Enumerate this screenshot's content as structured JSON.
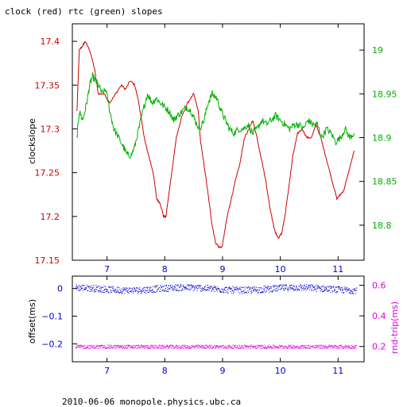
{
  "title": "clock (red) rtc (green) slopes",
  "footer": "2010-06-06 monopole.physics.ubc.ca",
  "chart_data": [
    {
      "type": "line",
      "title": "clock (red) rtc (green) slopes",
      "xlim": [
        6.4,
        11.45
      ],
      "x_ticks": [
        7,
        8,
        9,
        10,
        11
      ],
      "left_axis": {
        "label": "clockslope",
        "range": [
          17.15,
          17.42
        ],
        "ticks": [
          "17.15",
          "17.2",
          "17.25",
          "17.3",
          "17.35",
          "17.4"
        ],
        "color": "#d00000"
      },
      "right_axis": {
        "label": "",
        "range": [
          18.76,
          19.03
        ],
        "ticks": [
          "18.8",
          "18.85",
          "18.9",
          "18.95",
          "19"
        ],
        "color": "#00b000"
      },
      "series": [
        {
          "color": "#d00000",
          "axis": "left",
          "x": [
            6.48,
            6.52,
            6.58,
            6.62,
            6.7,
            6.78,
            6.85,
            6.95,
            7.05,
            7.15,
            7.25,
            7.32,
            7.4,
            7.48,
            7.55,
            7.62,
            7.66,
            7.72,
            7.8,
            7.86,
            7.92,
            7.98,
            8.02,
            8.06,
            8.12,
            8.2,
            8.3,
            8.4,
            8.5,
            8.58,
            8.62,
            8.7,
            8.76,
            8.82,
            8.88,
            8.94,
            8.99,
            9.03,
            9.08,
            9.15,
            9.22,
            9.3,
            9.38,
            9.46,
            9.52,
            9.58,
            9.66,
            9.75,
            9.82,
            9.9,
            9.96,
            10.02,
            10.08,
            10.15,
            10.22,
            10.3,
            10.38,
            10.46,
            10.54,
            10.62,
            10.7,
            10.78,
            10.86,
            10.92,
            10.98,
            11.04,
            11.1,
            11.16,
            11.22,
            11.28
          ],
          "y": [
            17.32,
            17.39,
            17.395,
            17.4,
            17.39,
            17.37,
            17.34,
            17.34,
            17.33,
            17.34,
            17.35,
            17.345,
            17.355,
            17.35,
            17.33,
            17.3,
            17.285,
            17.27,
            17.25,
            17.22,
            17.215,
            17.2,
            17.2,
            17.22,
            17.25,
            17.29,
            17.315,
            17.33,
            17.34,
            17.32,
            17.285,
            17.25,
            17.22,
            17.19,
            17.17,
            17.165,
            17.165,
            17.18,
            17.2,
            17.22,
            17.24,
            17.26,
            17.29,
            17.3,
            17.31,
            17.295,
            17.27,
            17.24,
            17.21,
            17.185,
            17.175,
            17.18,
            17.2,
            17.235,
            17.27,
            17.295,
            17.3,
            17.29,
            17.29,
            17.305,
            17.29,
            17.27,
            17.25,
            17.235,
            17.22,
            17.225,
            17.23,
            17.245,
            17.26,
            17.275
          ]
        },
        {
          "color": "#00b000",
          "axis": "right",
          "x": [
            6.48,
            6.52,
            6.58,
            6.65,
            6.7,
            6.75,
            6.8,
            6.85,
            6.92,
            6.98,
            7.05,
            7.12,
            7.2,
            7.28,
            7.35,
            7.42,
            7.48,
            7.55,
            7.62,
            7.7,
            7.78,
            7.85,
            7.92,
            8.0,
            8.08,
            8.15,
            8.22,
            8.3,
            8.38,
            8.46,
            8.52,
            8.6,
            8.68,
            8.75,
            8.82,
            8.9,
            8.98,
            9.05,
            9.12,
            9.2,
            9.28,
            9.36,
            9.44,
            9.52,
            9.6,
            9.68,
            9.76,
            9.84,
            9.92,
            10.0,
            10.08,
            10.16,
            10.24,
            10.32,
            10.4,
            10.48,
            10.56,
            10.64,
            10.72,
            10.8,
            10.88,
            10.96,
            11.04,
            11.12,
            11.2,
            11.28
          ],
          "y": [
            18.9,
            18.93,
            18.92,
            18.94,
            18.96,
            18.97,
            18.965,
            18.96,
            18.95,
            18.955,
            18.93,
            18.91,
            18.9,
            18.89,
            18.88,
            18.88,
            18.89,
            18.91,
            18.93,
            18.95,
            18.94,
            18.945,
            18.94,
            18.935,
            18.93,
            18.92,
            18.925,
            18.93,
            18.935,
            18.93,
            18.92,
            18.91,
            18.92,
            18.94,
            18.95,
            18.945,
            18.93,
            18.92,
            18.91,
            18.905,
            18.91,
            18.91,
            18.915,
            18.905,
            18.91,
            18.92,
            18.915,
            18.92,
            18.925,
            18.92,
            18.915,
            18.91,
            18.915,
            18.915,
            18.91,
            18.92,
            18.915,
            18.915,
            18.9,
            18.91,
            18.905,
            18.895,
            18.9,
            18.91,
            18.9,
            18.905
          ]
        }
      ]
    },
    {
      "type": "scatter",
      "xlim": [
        6.4,
        11.45
      ],
      "x_ticks": [
        7,
        8,
        9,
        10,
        11
      ],
      "left_axis": {
        "label": "offset(ms)",
        "range": [
          -0.265,
          0.045
        ],
        "ticks": [
          "0",
          "−0.1",
          "−0.2"
        ],
        "tick_values": [
          0,
          -0.1,
          -0.2
        ],
        "color": "#0000d0"
      },
      "right_axis": {
        "label": "rnd-trip(ms)",
        "range": [
          0.1,
          0.66
        ],
        "ticks": [
          "0.6",
          "0.4",
          "0.2"
        ],
        "tick_values": [
          0.6,
          0.4,
          0.2
        ],
        "color": "#e000e0"
      },
      "series": [
        {
          "color": "#0000d0",
          "axis": "left",
          "x_range": [
            6.45,
            11.32
          ],
          "center": 0.0,
          "spread": 0.012
        },
        {
          "color": "#e000e0",
          "axis": "right",
          "x_range": [
            6.45,
            11.32
          ],
          "center": 0.2,
          "spread": 0.012
        }
      ]
    }
  ]
}
